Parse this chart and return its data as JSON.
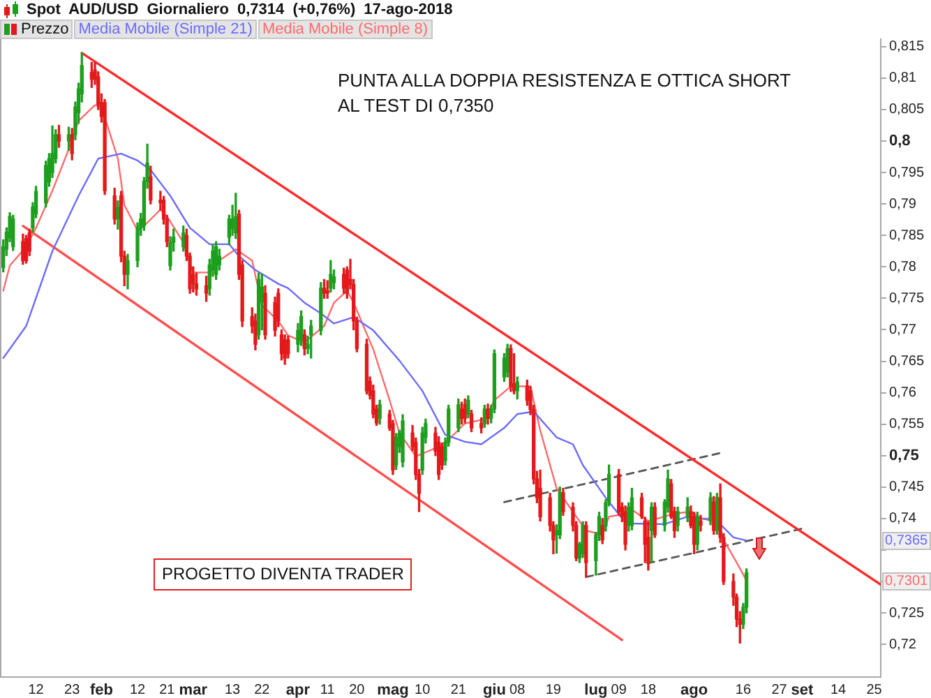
{
  "chart_data": {
    "type": "candlestick",
    "title": "Spot AUD/USD Giornaliero 0,7314 (+0,76%) 17-ago-2018",
    "legend": "top left",
    "xlim": [
      "2018-01-01",
      "2018-09-27"
    ],
    "xticks": [
      {
        "value": "2018-01-12",
        "label": "12"
      },
      {
        "value": "2018-01-23",
        "label": "23"
      },
      {
        "value": "2018-02-01",
        "label": "feb"
      },
      {
        "value": "2018-02-12",
        "label": "12"
      },
      {
        "value": "2018-02-21",
        "label": "21"
      },
      {
        "value": "2018-03-01",
        "label": "mar"
      },
      {
        "value": "2018-03-13",
        "label": "13"
      },
      {
        "value": "2018-03-22",
        "label": "22"
      },
      {
        "value": "2018-04-02",
        "label": "apr"
      },
      {
        "value": "2018-04-11",
        "label": "11"
      },
      {
        "value": "2018-04-20",
        "label": "20"
      },
      {
        "value": "2018-05-01",
        "label": "mag"
      },
      {
        "value": "2018-05-10",
        "label": "10"
      },
      {
        "value": "2018-05-21",
        "label": "21"
      },
      {
        "value": "2018-06-01",
        "label": "giu"
      },
      {
        "value": "2018-06-08",
        "label": "08"
      },
      {
        "value": "2018-06-19",
        "label": "19"
      },
      {
        "value": "2018-07-02",
        "label": "lug"
      },
      {
        "value": "2018-07-09",
        "label": "09"
      },
      {
        "value": "2018-07-18",
        "label": "18"
      },
      {
        "value": "2018-08-01",
        "label": "ago"
      },
      {
        "value": "2018-08-16",
        "label": "16"
      },
      {
        "value": "2018-08-27",
        "label": "27"
      },
      {
        "value": "2018-09-03",
        "label": "set"
      },
      {
        "value": "2018-09-14",
        "label": "14"
      },
      {
        "value": "2018-09-25",
        "label": "25"
      }
    ],
    "ylim": [
      0.7148,
      0.8162
    ],
    "yticks": [
      {
        "value": 0.72,
        "label": "0,72"
      },
      {
        "value": 0.725,
        "label": "0,725"
      },
      {
        "value": 0.73,
        "label": null
      },
      {
        "value": 0.735,
        "label": null
      },
      {
        "value": 0.74,
        "label": "0,74"
      },
      {
        "value": 0.745,
        "label": "0,745"
      },
      {
        "value": 0.75,
        "label": "0,75"
      },
      {
        "value": 0.755,
        "label": "0,755"
      },
      {
        "value": 0.76,
        "label": "0,76"
      },
      {
        "value": 0.765,
        "label": "0,765"
      },
      {
        "value": 0.77,
        "label": "0,77"
      },
      {
        "value": 0.775,
        "label": "0,775"
      },
      {
        "value": 0.78,
        "label": "0,78"
      },
      {
        "value": 0.785,
        "label": "0,785"
      },
      {
        "value": 0.79,
        "label": "0,79"
      },
      {
        "value": 0.795,
        "label": "0,795"
      },
      {
        "value": 0.8,
        "label": "0,8"
      },
      {
        "value": 0.805,
        "label": "0,805"
      },
      {
        "value": 0.81,
        "label": "0,81"
      },
      {
        "value": 0.815,
        "label": "0,815"
      }
    ],
    "annotations": [
      "PUNTA ALLA DOPPIA RESISTENZA E OTTICA SHORT\nAL TEST DI 0,7350",
      "PROGETTO DIVENTA TRADER",
      {
        "text": "0,7365",
        "y": 0.7365
      },
      {
        "text": "0,7301",
        "y": 0.7301
      }
    ],
    "series": [
      {
        "name": "Prezzo",
        "x": [
          "2018-01-02",
          "2018-01-03",
          "2018-01-04",
          "2018-01-05",
          "2018-01-08",
          "2018-01-09",
          "2018-01-10",
          "2018-01-11",
          "2018-01-12",
          "2018-01-15",
          "2018-01-16",
          "2018-01-17",
          "2018-01-18",
          "2018-01-19",
          "2018-01-22",
          "2018-01-23",
          "2018-01-24",
          "2018-01-25",
          "2018-01-26",
          "2018-01-29",
          "2018-01-30",
          "2018-01-31",
          "2018-02-01",
          "2018-02-02",
          "2018-02-05",
          "2018-02-06",
          "2018-02-07",
          "2018-02-08",
          "2018-02-09",
          "2018-02-12",
          "2018-02-13",
          "2018-02-14",
          "2018-02-15",
          "2018-02-16",
          "2018-02-19",
          "2018-02-20",
          "2018-02-21",
          "2018-02-22",
          "2018-02-23",
          "2018-02-26",
          "2018-02-27",
          "2018-02-28",
          "2018-03-01",
          "2018-03-02",
          "2018-03-05",
          "2018-03-06",
          "2018-03-07",
          "2018-03-08",
          "2018-03-09",
          "2018-03-12",
          "2018-03-13",
          "2018-03-14",
          "2018-03-15",
          "2018-03-16",
          "2018-03-19",
          "2018-03-20",
          "2018-03-21",
          "2018-03-22",
          "2018-03-23",
          "2018-03-26",
          "2018-03-27",
          "2018-03-28",
          "2018-03-29",
          "2018-03-30",
          "2018-04-02",
          "2018-04-03",
          "2018-04-04",
          "2018-04-05",
          "2018-04-06",
          "2018-04-09",
          "2018-04-10",
          "2018-04-11",
          "2018-04-12",
          "2018-04-13",
          "2018-04-16",
          "2018-04-17",
          "2018-04-18",
          "2018-04-19",
          "2018-04-20",
          "2018-04-23",
          "2018-04-24",
          "2018-04-25",
          "2018-04-26",
          "2018-04-27",
          "2018-04-30",
          "2018-05-01",
          "2018-05-02",
          "2018-05-03",
          "2018-05-04",
          "2018-05-07",
          "2018-05-08",
          "2018-05-09",
          "2018-05-10",
          "2018-05-11",
          "2018-05-14",
          "2018-05-15",
          "2018-05-16",
          "2018-05-17",
          "2018-05-18",
          "2018-05-21",
          "2018-05-22",
          "2018-05-23",
          "2018-05-24",
          "2018-05-25",
          "2018-05-28",
          "2018-05-29",
          "2018-05-30",
          "2018-05-31",
          "2018-06-01",
          "2018-06-04",
          "2018-06-05",
          "2018-06-06",
          "2018-06-07",
          "2018-06-08",
          "2018-06-11",
          "2018-06-12",
          "2018-06-13",
          "2018-06-14",
          "2018-06-15",
          "2018-06-18",
          "2018-06-19",
          "2018-06-20",
          "2018-06-21",
          "2018-06-22",
          "2018-06-25",
          "2018-06-26",
          "2018-06-27",
          "2018-06-28",
          "2018-06-29",
          "2018-07-02",
          "2018-07-03",
          "2018-07-04",
          "2018-07-05",
          "2018-07-06",
          "2018-07-09",
          "2018-07-10",
          "2018-07-11",
          "2018-07-12",
          "2018-07-13",
          "2018-07-16",
          "2018-07-17",
          "2018-07-18",
          "2018-07-19",
          "2018-07-20",
          "2018-07-23",
          "2018-07-24",
          "2018-07-25",
          "2018-07-26",
          "2018-07-27",
          "2018-07-30",
          "2018-07-31",
          "2018-08-01",
          "2018-08-02",
          "2018-08-03",
          "2018-08-06",
          "2018-08-07",
          "2018-08-08",
          "2018-08-09",
          "2018-08-10",
          "2018-08-13",
          "2018-08-14",
          "2018-08-15",
          "2018-08-16",
          "2018-08-17"
        ],
        "ohlc": [
          [
            0.7799,
            0.7843,
            0.7792,
            0.7832
          ],
          [
            0.7828,
            0.7862,
            0.7818,
            0.7855
          ],
          [
            0.7846,
            0.7886,
            0.784,
            0.788
          ],
          [
            0.7832,
            0.7882,
            0.7826,
            0.7876
          ],
          [
            0.784,
            0.7852,
            0.7804,
            0.781
          ],
          [
            0.7845,
            0.785,
            0.7806,
            0.781
          ],
          [
            0.7854,
            0.786,
            0.7818,
            0.7825
          ],
          [
            0.7862,
            0.7902,
            0.7855,
            0.7895
          ],
          [
            0.7884,
            0.7928,
            0.7878,
            0.792
          ],
          [
            0.7902,
            0.7968,
            0.7895,
            0.7961
          ],
          [
            0.7935,
            0.798,
            0.7928,
            0.7972
          ],
          [
            0.795,
            0.8024,
            0.7942,
            0.798
          ],
          [
            0.7972,
            0.8018,
            0.7965,
            0.801
          ],
          [
            0.801,
            0.8025,
            0.799,
            0.8
          ],
          [
            0.8,
            0.8022,
            0.7985,
            0.801
          ],
          [
            0.801,
            0.802,
            0.797,
            0.798
          ],
          [
            0.801,
            0.8062,
            0.8002,
            0.8054
          ],
          [
            0.8045,
            0.8092,
            0.8028,
            0.8083
          ],
          [
            0.8075,
            0.814,
            0.8062,
            0.812
          ],
          [
            0.8109,
            0.8125,
            0.8085,
            0.8098
          ],
          [
            0.8113,
            0.8125,
            0.809,
            0.8098
          ],
          [
            0.8102,
            0.811,
            0.805,
            0.8058
          ],
          [
            0.8061,
            0.8075,
            0.803,
            0.8039
          ],
          [
            0.8061,
            0.8066,
            0.7915,
            0.7921
          ],
          [
            0.7913,
            0.7925,
            0.7868,
            0.7876
          ],
          [
            0.7876,
            0.7905,
            0.786,
            0.7895
          ],
          [
            0.7913,
            0.792,
            0.7808,
            0.7817
          ],
          [
            0.7817,
            0.7825,
            0.777,
            0.7788
          ],
          [
            0.7788,
            0.782,
            0.7765,
            0.781
          ],
          [
            0.781,
            0.787,
            0.78,
            0.7862
          ],
          [
            0.7862,
            0.7885,
            0.785,
            0.7876
          ],
          [
            0.7866,
            0.7942,
            0.7858,
            0.7936
          ],
          [
            0.7936,
            0.7995,
            0.7925,
            0.7965
          ],
          [
            0.7943,
            0.796,
            0.79,
            0.7906
          ],
          [
            0.7906,
            0.792,
            0.789,
            0.7902
          ],
          [
            0.7906,
            0.7912,
            0.7868,
            0.7876
          ],
          [
            0.7876,
            0.7882,
            0.7832,
            0.784
          ],
          [
            0.7802,
            0.7848,
            0.7795,
            0.7839
          ],
          [
            0.7839,
            0.786,
            0.7825,
            0.7847
          ],
          [
            0.7832,
            0.7865,
            0.7825,
            0.7854
          ],
          [
            0.785,
            0.786,
            0.781,
            0.7817
          ],
          [
            0.7817,
            0.7822,
            0.7758,
            0.7765
          ],
          [
            0.7788,
            0.78,
            0.776,
            0.7773
          ],
          [
            0.7773,
            0.779,
            0.7755,
            0.7765
          ],
          [
            0.777,
            0.7785,
            0.7745,
            0.7758
          ],
          [
            0.7765,
            0.7812,
            0.7755,
            0.7803
          ],
          [
            0.7795,
            0.7835,
            0.7785,
            0.7825
          ],
          [
            0.7788,
            0.784,
            0.778,
            0.7832
          ],
          [
            0.7803,
            0.7828,
            0.7795,
            0.7817
          ],
          [
            0.7847,
            0.7882,
            0.7835,
            0.7876
          ],
          [
            0.7861,
            0.7898,
            0.785,
            0.7876
          ],
          [
            0.7854,
            0.7917,
            0.7845,
            0.788
          ],
          [
            0.7884,
            0.789,
            0.778,
            0.7788
          ],
          [
            0.7803,
            0.781,
            0.7705,
            0.7714
          ],
          [
            0.7721,
            0.7735,
            0.7695,
            0.7706
          ],
          [
            0.7714,
            0.7725,
            0.7668,
            0.7677
          ],
          [
            0.7692,
            0.779,
            0.7685,
            0.778
          ],
          [
            0.7745,
            0.7788,
            0.77,
            0.7768
          ],
          [
            0.7758,
            0.777,
            0.7685,
            0.7692
          ],
          [
            0.7743,
            0.7752,
            0.769,
            0.7699
          ],
          [
            0.7758,
            0.7765,
            0.7705,
            0.7714
          ],
          [
            0.7692,
            0.77,
            0.7652,
            0.7662
          ],
          [
            0.7684,
            0.7692,
            0.7645,
            0.7655
          ],
          [
            0.7684,
            0.769,
            0.7655,
            0.7662
          ],
          [
            0.7677,
            0.771,
            0.7665,
            0.7699
          ],
          [
            0.7684,
            0.773,
            0.7675,
            0.7721
          ],
          [
            0.7692,
            0.77,
            0.766,
            0.767
          ],
          [
            0.767,
            0.769,
            0.7662,
            0.7677
          ],
          [
            0.7692,
            0.7715,
            0.7655,
            0.7706
          ],
          [
            0.7699,
            0.7775,
            0.7692,
            0.7766
          ],
          [
            0.7766,
            0.778,
            0.775,
            0.7758
          ],
          [
            0.7762,
            0.7778,
            0.775,
            0.7758
          ],
          [
            0.7766,
            0.781,
            0.776,
            0.7788
          ],
          [
            0.7775,
            0.7795,
            0.7765,
            0.7784
          ],
          [
            0.7788,
            0.7798,
            0.7758,
            0.7766
          ],
          [
            0.7795,
            0.78,
            0.775,
            0.7758
          ],
          [
            0.778,
            0.7812,
            0.7765,
            0.7772
          ],
          [
            0.7772,
            0.778,
            0.77,
            0.7714
          ],
          [
            0.7714,
            0.772,
            0.7665,
            0.767
          ],
          [
            0.7677,
            0.7685,
            0.7598,
            0.7603
          ],
          [
            0.7618,
            0.7625,
            0.759,
            0.7596
          ],
          [
            0.7603,
            0.7612,
            0.756,
            0.7566
          ],
          [
            0.7574,
            0.758,
            0.7548,
            0.7552
          ],
          [
            0.7559,
            0.7588,
            0.755,
            0.7581
          ],
          [
            0.7566,
            0.7572,
            0.754,
            0.7544
          ],
          [
            0.7551,
            0.7556,
            0.747,
            0.7477
          ],
          [
            0.7485,
            0.7535,
            0.7478,
            0.7529
          ],
          [
            0.7514,
            0.754,
            0.7505,
            0.7536
          ],
          [
            0.749,
            0.7565,
            0.7482,
            0.7555
          ],
          [
            0.7536,
            0.7548,
            0.7508,
            0.7514
          ],
          [
            0.7521,
            0.7528,
            0.7462,
            0.747
          ],
          [
            0.747,
            0.7478,
            0.7411,
            0.744
          ],
          [
            0.7477,
            0.7545,
            0.747,
            0.7536
          ],
          [
            0.7529,
            0.7558,
            0.752,
            0.7551
          ],
          [
            0.7536,
            0.7545,
            0.75,
            0.7507
          ],
          [
            0.7521,
            0.753,
            0.7462,
            0.747
          ],
          [
            0.7514,
            0.752,
            0.7478,
            0.7485
          ],
          [
            0.7492,
            0.7528,
            0.7485,
            0.7521
          ],
          [
            0.7521,
            0.758,
            0.7515,
            0.7574
          ],
          [
            0.7544,
            0.759,
            0.7538,
            0.7581
          ],
          [
            0.7574,
            0.7585,
            0.755,
            0.7559
          ],
          [
            0.7581,
            0.759,
            0.7552,
            0.7559
          ],
          [
            0.7566,
            0.7595,
            0.756,
            0.7588
          ],
          [
            0.7566,
            0.7572,
            0.7538,
            0.7544
          ],
          [
            0.7551,
            0.756,
            0.7536,
            0.7544
          ],
          [
            0.7551,
            0.758,
            0.7545,
            0.7574
          ],
          [
            0.7574,
            0.7582,
            0.755,
            0.7559
          ],
          [
            0.7559,
            0.758,
            0.7552,
            0.7574
          ],
          [
            0.7574,
            0.7668,
            0.7568,
            0.7662
          ],
          [
            0.7625,
            0.7662,
            0.7618,
            0.7655
          ],
          [
            0.7633,
            0.7677,
            0.7625,
            0.767
          ],
          [
            0.767,
            0.7676,
            0.7602,
            0.761
          ],
          [
            0.7614,
            0.7662,
            0.7598,
            0.7603
          ],
          [
            0.7603,
            0.7625,
            0.759,
            0.7617
          ],
          [
            0.761,
            0.762,
            0.758,
            0.7588
          ],
          [
            0.7603,
            0.761,
            0.7565,
            0.7573
          ],
          [
            0.7573,
            0.758,
            0.7455,
            0.7463
          ],
          [
            0.7463,
            0.7475,
            0.7425,
            0.7433
          ],
          [
            0.7448,
            0.7477,
            0.7396,
            0.7403
          ],
          [
            0.7433,
            0.744,
            0.738,
            0.7389
          ],
          [
            0.7389,
            0.7395,
            0.7344,
            0.7366
          ],
          [
            0.7374,
            0.739,
            0.7345,
            0.7381
          ],
          [
            0.7374,
            0.745,
            0.7368,
            0.7441
          ],
          [
            0.7441,
            0.7448,
            0.7405,
            0.7411
          ],
          [
            0.7418,
            0.7425,
            0.738,
            0.7389
          ],
          [
            0.7389,
            0.7395,
            0.7333,
            0.7337
          ],
          [
            0.7337,
            0.7362,
            0.733,
            0.7359
          ],
          [
            0.7344,
            0.7395,
            0.7338,
            0.7389
          ],
          [
            0.7389,
            0.7395,
            0.7307,
            0.733
          ],
          [
            0.7333,
            0.7378,
            0.731,
            0.7374
          ],
          [
            0.7374,
            0.741,
            0.7365,
            0.7403
          ],
          [
            0.7389,
            0.74,
            0.736,
            0.7366
          ],
          [
            0.7388,
            0.743,
            0.738,
            0.7425
          ],
          [
            0.7426,
            0.7485,
            0.742,
            0.747
          ],
          [
            0.747,
            0.7478,
            0.7405,
            0.7411
          ],
          [
            0.7418,
            0.7425,
            0.7395,
            0.7403
          ],
          [
            0.7411,
            0.742,
            0.735,
            0.7359
          ],
          [
            0.7389,
            0.7425,
            0.738,
            0.7418
          ],
          [
            0.7389,
            0.7448,
            0.7382,
            0.7433
          ],
          [
            0.7433,
            0.744,
            0.74,
            0.7403
          ],
          [
            0.7396,
            0.7402,
            0.733,
            0.7359
          ],
          [
            0.737,
            0.7395,
            0.7318,
            0.733
          ],
          [
            0.7381,
            0.7425,
            0.733,
            0.7418
          ],
          [
            0.7418,
            0.7425,
            0.737,
            0.7374
          ],
          [
            0.7389,
            0.743,
            0.738,
            0.7426
          ],
          [
            0.7418,
            0.7477,
            0.741,
            0.7463
          ],
          [
            0.7455,
            0.7462,
            0.74,
            0.7403
          ],
          [
            0.7411,
            0.7418,
            0.737,
            0.7381
          ],
          [
            0.7389,
            0.7418,
            0.738,
            0.7411
          ],
          [
            0.7403,
            0.7433,
            0.7395,
            0.7418
          ],
          [
            0.7411,
            0.742,
            0.7385,
            0.7389
          ],
          [
            0.7403,
            0.741,
            0.7344,
            0.7359
          ],
          [
            0.7359,
            0.741,
            0.735,
            0.7403
          ],
          [
            0.7396,
            0.7405,
            0.738,
            0.7389
          ],
          [
            0.7396,
            0.7441,
            0.739,
            0.7433
          ],
          [
            0.7426,
            0.7435,
            0.7375,
            0.7381
          ],
          [
            0.7381,
            0.744,
            0.7375,
            0.7433
          ],
          [
            0.7433,
            0.7455,
            0.7362,
            0.737
          ],
          [
            0.737,
            0.7376,
            0.7295,
            0.73
          ],
          [
            0.73,
            0.7312,
            0.7262,
            0.7275
          ],
          [
            0.7275,
            0.728,
            0.7228,
            0.724
          ],
          [
            0.724,
            0.7252,
            0.7202,
            0.7232
          ],
          [
            0.7232,
            0.7265,
            0.7225,
            0.7259
          ],
          [
            0.7259,
            0.732,
            0.725,
            0.7314
          ]
        ],
        "colors": [
          "#1e9e1e",
          "#1e9e1e",
          "#1e9e1e",
          "#1e9e1e",
          "#e3191b",
          "#e3191b",
          "#e3191b",
          "#1e9e1e",
          "#1e9e1e",
          "#1e9e1e",
          "#1e9e1e",
          "#1e9e1e",
          "#1e9e1e",
          "#e3191b",
          "#1e9e1e",
          "#e3191b",
          "#1e9e1e",
          "#1e9e1e",
          "#1e9e1e",
          "#e3191b",
          "#e3191b",
          "#e3191b",
          "#e3191b",
          "#e3191b",
          "#e3191b",
          "#1e9e1e",
          "#e3191b",
          "#e3191b",
          "#1e9e1e",
          "#1e9e1e",
          "#1e9e1e",
          "#1e9e1e",
          "#1e9e1e",
          "#e3191b",
          "#e3191b",
          "#e3191b",
          "#e3191b",
          "#1e9e1e",
          "#1e9e1e",
          "#1e9e1e",
          "#e3191b",
          "#e3191b",
          "#e3191b",
          "#e3191b",
          "#e3191b",
          "#1e9e1e",
          "#1e9e1e",
          "#1e9e1e",
          "#1e9e1e",
          "#1e9e1e",
          "#1e9e1e",
          "#1e9e1e",
          "#e3191b",
          "#e3191b",
          "#e3191b",
          "#e3191b",
          "#1e9e1e",
          "#1e9e1e",
          "#e3191b",
          "#e3191b",
          "#e3191b",
          "#e3191b",
          "#e3191b",
          "#e3191b",
          "#1e9e1e",
          "#1e9e1e",
          "#e3191b",
          "#1e9e1e",
          "#1e9e1e",
          "#1e9e1e",
          "#e3191b",
          "#e3191b",
          "#1e9e1e",
          "#1e9e1e",
          "#e3191b",
          "#e3191b",
          "#e3191b",
          "#e3191b",
          "#e3191b",
          "#e3191b",
          "#e3191b",
          "#e3191b",
          "#e3191b",
          "#1e9e1e",
          "#e3191b",
          "#e3191b",
          "#1e9e1e",
          "#1e9e1e",
          "#1e9e1e",
          "#e3191b",
          "#e3191b",
          "#e3191b",
          "#1e9e1e",
          "#1e9e1e",
          "#e3191b",
          "#e3191b",
          "#e3191b",
          "#1e9e1e",
          "#1e9e1e",
          "#1e9e1e",
          "#e3191b",
          "#e3191b",
          "#1e9e1e",
          "#e3191b",
          "#e3191b",
          "#1e9e1e",
          "#e3191b",
          "#1e9e1e",
          "#1e9e1e",
          "#1e9e1e",
          "#1e9e1e",
          "#e3191b",
          "#e3191b",
          "#1e9e1e",
          "#e3191b",
          "#e3191b",
          "#e3191b",
          "#e3191b",
          "#e3191b",
          "#e3191b",
          "#e3191b",
          "#1e9e1e",
          "#1e9e1e",
          "#e3191b",
          "#e3191b",
          "#e3191b",
          "#1e9e1e",
          "#1e9e1e",
          "#e3191b",
          "#1e9e1e",
          "#1e9e1e",
          "#e3191b",
          "#1e9e1e",
          "#1e9e1e",
          "#e3191b",
          "#e3191b",
          "#e3191b",
          "#1e9e1e",
          "#1e9e1e",
          "#e3191b",
          "#e3191b",
          "#e3191b",
          "#1e9e1e",
          "#e3191b",
          "#1e9e1e",
          "#1e9e1e",
          "#e3191b",
          "#e3191b",
          "#1e9e1e",
          "#1e9e1e",
          "#e3191b",
          "#e3191b",
          "#1e9e1e",
          "#e3191b",
          "#1e9e1e",
          "#e3191b",
          "#1e9e1e",
          "#e3191b",
          "#e3191b",
          "#e3191b",
          "#e3191b",
          "#e3191b",
          "#1e9e1e",
          "#1e9e1e"
        ]
      },
      {
        "name": "Media Mobile (Simple 21)",
        "type": "line",
        "color": "#6b6bff",
        "x": [
          "2018-01-02",
          "2018-01-09",
          "2018-01-17",
          "2018-01-25",
          "2018-01-31",
          "2018-02-07",
          "2018-02-12",
          "2018-02-16",
          "2018-02-22",
          "2018-02-28",
          "2018-03-06",
          "2018-03-12",
          "2018-03-15",
          "2018-03-20",
          "2018-03-27",
          "2018-03-30",
          "2018-04-04",
          "2018-04-09",
          "2018-04-13",
          "2018-04-19",
          "2018-04-25",
          "2018-05-03",
          "2018-05-10",
          "2018-05-17",
          "2018-05-23",
          "2018-05-28",
          "2018-06-04",
          "2018-06-08",
          "2018-06-13",
          "2018-06-20",
          "2018-06-25",
          "2018-06-28",
          "2018-07-05",
          "2018-07-10",
          "2018-07-13",
          "2018-07-23",
          "2018-07-30",
          "2018-08-03",
          "2018-08-08",
          "2018-08-13",
          "2018-08-17"
        ],
        "values": [
          0.7655,
          0.7706,
          0.7825,
          0.7913,
          0.7972,
          0.798,
          0.7969,
          0.7954,
          0.7913,
          0.7862,
          0.7836,
          0.7836,
          0.7817,
          0.7795,
          0.7773,
          0.7766,
          0.7743,
          0.7726,
          0.771,
          0.772,
          0.7699,
          0.7651,
          0.7603,
          0.7533,
          0.7522,
          0.7518,
          0.7544,
          0.7566,
          0.757,
          0.7529,
          0.7518,
          0.7485,
          0.7433,
          0.74,
          0.7392,
          0.7391,
          0.7403,
          0.74,
          0.7396,
          0.737,
          0.7365
        ]
      },
      {
        "name": "Media Mobile (Simple 8)",
        "type": "line",
        "color": "#ff6b6b",
        "x": [
          "2018-01-02",
          "2018-01-04",
          "2018-01-09",
          "2018-01-12",
          "2018-01-17",
          "2018-01-22",
          "2018-01-25",
          "2018-01-30",
          "2018-02-01",
          "2018-02-06",
          "2018-02-08",
          "2018-02-12",
          "2018-02-14",
          "2018-02-19",
          "2018-02-21",
          "2018-02-26",
          "2018-03-01",
          "2018-03-06",
          "2018-03-09",
          "2018-03-14",
          "2018-03-19",
          "2018-03-22",
          "2018-03-27",
          "2018-03-30",
          "2018-04-04",
          "2018-04-10",
          "2018-04-13",
          "2018-04-17",
          "2018-04-19",
          "2018-04-25",
          "2018-04-30",
          "2018-05-03",
          "2018-05-08",
          "2018-05-10",
          "2018-05-15",
          "2018-05-18",
          "2018-05-23",
          "2018-05-29",
          "2018-06-01",
          "2018-06-06",
          "2018-06-12",
          "2018-06-15",
          "2018-06-20",
          "2018-06-26",
          "2018-06-29",
          "2018-07-04",
          "2018-07-06",
          "2018-07-11",
          "2018-07-13",
          "2018-07-18",
          "2018-07-23",
          "2018-07-25",
          "2018-07-31",
          "2018-08-03",
          "2018-08-08",
          "2018-08-10",
          "2018-08-14",
          "2018-08-16",
          "2018-08-17"
        ],
        "values": [
          0.7762,
          0.7802,
          0.7832,
          0.7862,
          0.7921,
          0.7987,
          0.8032,
          0.8057,
          0.8054,
          0.7972,
          0.7898,
          0.7858,
          0.7865,
          0.7891,
          0.788,
          0.7839,
          0.7791,
          0.7791,
          0.781,
          0.7828,
          0.781,
          0.7739,
          0.7714,
          0.7691,
          0.768,
          0.7706,
          0.7743,
          0.7762,
          0.7743,
          0.7669,
          0.7588,
          0.7536,
          0.7499,
          0.7503,
          0.7514,
          0.7525,
          0.7551,
          0.7558,
          0.7588,
          0.761,
          0.761,
          0.754,
          0.7448,
          0.7403,
          0.7381,
          0.7374,
          0.7403,
          0.7407,
          0.7414,
          0.7396,
          0.7403,
          0.7407,
          0.7411,
          0.74,
          0.74,
          0.7366,
          0.733,
          0.7311,
          0.7301
        ]
      },
      {
        "type": "line",
        "color": "#ff2a2a",
        "x": [
          "2018-01-26",
          "2018-09-27"
        ],
        "values": [
          0.814,
          0.7295
        ]
      },
      {
        "type": "line",
        "color": "#ff4d4d",
        "x": [
          "2018-01-08",
          "2018-07-10"
        ],
        "values": [
          0.7865,
          0.7207
        ]
      },
      {
        "type": "line",
        "color": "#555555",
        "line_style": "dashed",
        "x": [
          "2018-06-04",
          "2018-08-09"
        ],
        "values": [
          0.7426,
          0.7504
        ]
      },
      {
        "type": "line",
        "color": "#555555",
        "line_style": "dashed",
        "x": [
          "2018-06-29",
          "2018-09-04"
        ],
        "values": [
          0.7307,
          0.7385
        ]
      }
    ]
  }
}
